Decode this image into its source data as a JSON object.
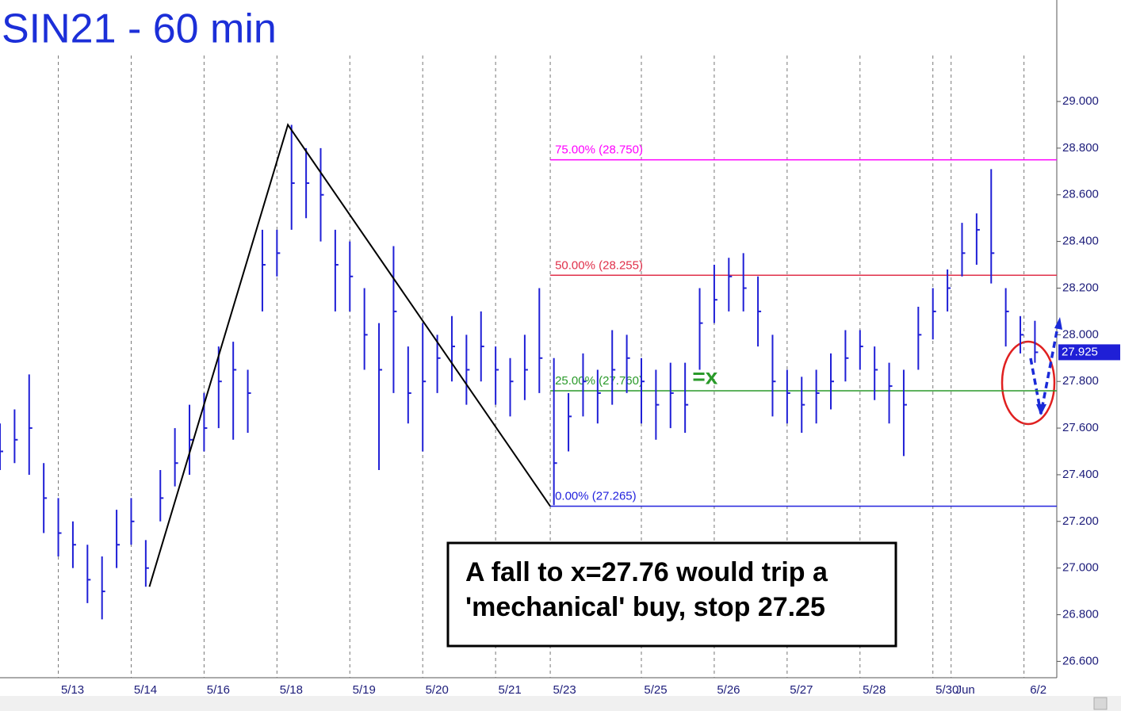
{
  "chart_data": {
    "type": "ohlc",
    "title": "SIN21 - 60 min",
    "x": [
      0,
      4,
      8,
      12,
      16,
      20,
      24,
      28,
      32,
      36,
      40,
      44,
      48,
      52,
      56,
      60,
      64,
      68,
      72,
      76,
      80,
      84,
      88,
      92,
      96,
      100,
      104,
      108,
      112,
      116,
      120,
      124,
      128,
      132,
      136,
      140,
      144,
      148,
      152,
      156,
      160,
      164,
      168,
      172,
      176,
      180,
      184,
      188,
      192,
      196,
      200,
      204,
      208,
      212,
      216,
      220,
      224,
      228,
      232,
      236,
      240,
      244,
      248,
      252,
      256,
      260,
      264,
      268,
      272,
      276,
      280,
      284
    ],
    "series": [
      {
        "color": "#1f1fd6",
        "high": [
          27.62,
          27.68,
          27.83,
          27.45,
          27.3,
          27.2,
          27.1,
          27.05,
          27.25,
          27.3,
          27.12,
          27.42,
          27.6,
          27.7,
          27.75,
          27.95,
          27.97,
          27.85,
          28.45,
          28.45,
          28.9,
          28.8,
          28.8,
          28.45,
          28.4,
          28.2,
          28.05,
          28.38,
          27.95,
          28.05,
          28.0,
          28.08,
          28.0,
          28.1,
          27.95,
          27.9,
          28.0,
          28.2,
          27.9,
          27.75,
          27.92,
          27.85,
          28.02,
          28.0,
          27.9,
          27.85,
          27.88,
          27.88,
          28.2,
          28.3,
          28.33,
          28.35,
          28.25,
          28.0,
          27.85,
          27.82,
          27.85,
          27.92,
          28.02,
          28.02,
          27.95,
          27.88,
          27.85,
          28.12,
          28.2,
          28.28,
          28.48,
          28.52,
          28.71,
          28.2,
          28.08,
          28.06
        ],
        "low": [
          27.42,
          27.45,
          27.4,
          27.15,
          27.05,
          27.0,
          26.85,
          26.78,
          27.0,
          27.1,
          26.92,
          27.2,
          27.35,
          27.4,
          27.5,
          27.6,
          27.55,
          27.58,
          28.1,
          28.25,
          28.45,
          28.5,
          28.4,
          28.1,
          28.1,
          27.85,
          27.42,
          27.75,
          27.62,
          27.5,
          27.75,
          27.8,
          27.7,
          27.8,
          27.7,
          27.65,
          27.72,
          27.75,
          27.27,
          27.5,
          27.65,
          27.62,
          27.7,
          27.75,
          27.62,
          27.55,
          27.6,
          27.58,
          27.85,
          28.05,
          28.1,
          28.1,
          27.95,
          27.65,
          27.62,
          27.58,
          27.62,
          27.68,
          27.8,
          27.85,
          27.72,
          27.62,
          27.48,
          27.85,
          27.98,
          28.1,
          28.25,
          28.3,
          28.22,
          27.95,
          27.92,
          27.88
        ],
        "close": [
          27.5,
          27.55,
          27.6,
          27.3,
          27.15,
          27.1,
          26.95,
          26.9,
          27.1,
          27.2,
          27.0,
          27.3,
          27.45,
          27.55,
          27.6,
          27.8,
          27.85,
          27.75,
          28.3,
          28.35,
          28.65,
          28.65,
          28.6,
          28.3,
          28.25,
          28.0,
          27.85,
          28.1,
          27.75,
          27.8,
          27.9,
          27.95,
          27.85,
          27.95,
          27.85,
          27.8,
          27.85,
          27.9,
          27.45,
          27.65,
          27.8,
          27.75,
          27.85,
          27.9,
          27.8,
          27.7,
          27.75,
          27.7,
          28.05,
          28.15,
          28.25,
          28.2,
          28.1,
          27.8,
          27.75,
          27.7,
          27.75,
          27.8,
          27.9,
          27.95,
          27.85,
          27.78,
          27.7,
          28.0,
          28.1,
          28.2,
          28.35,
          28.45,
          28.35,
          28.1,
          28.0,
          27.925
        ]
      }
    ],
    "last_price": 27.925,
    "xlim": [
      0,
      290
    ],
    "xticks": [
      {
        "value": 16,
        "label": "5/13"
      },
      {
        "value": 36,
        "label": "5/14"
      },
      {
        "value": 56,
        "label": "5/16"
      },
      {
        "value": 76,
        "label": "5/18"
      },
      {
        "value": 96,
        "label": "5/19"
      },
      {
        "value": 116,
        "label": "5/20"
      },
      {
        "value": 136,
        "label": "5/21"
      },
      {
        "value": 151,
        "label": "5/23"
      },
      {
        "value": 176,
        "label": "5/25"
      },
      {
        "value": 196,
        "label": "5/26"
      },
      {
        "value": 216,
        "label": "5/27"
      },
      {
        "value": 236,
        "label": "5/28"
      },
      {
        "value": 256,
        "label": "5/30"
      },
      {
        "value": 261,
        "label": "Jun"
      },
      {
        "value": 281,
        "label": "6/2"
      }
    ],
    "ylim": [
      26.53,
      29.435
    ],
    "yticks": [
      {
        "value": 26.6,
        "label": "26.600"
      },
      {
        "value": 26.8,
        "label": "26.800"
      },
      {
        "value": 27.0,
        "label": "27.000"
      },
      {
        "value": 27.2,
        "label": "27.200"
      },
      {
        "value": 27.4,
        "label": "27.400"
      },
      {
        "value": 27.6,
        "label": "27.600"
      },
      {
        "value": 27.8,
        "label": "27.800"
      },
      {
        "value": 28.0,
        "label": "28.000"
      },
      {
        "value": 28.2,
        "label": "28.200"
      },
      {
        "value": 28.4,
        "label": "28.400"
      },
      {
        "value": 28.6,
        "label": "28.600"
      },
      {
        "value": 28.8,
        "label": "28.800"
      },
      {
        "value": 29.0,
        "label": "29.000"
      }
    ],
    "trendline": {
      "x": [
        41,
        79,
        151
      ],
      "y": [
        26.92,
        28.9,
        27.265
      ],
      "color": "#000000"
    },
    "levels": [
      {
        "label": "75.00% (28.750)",
        "value": 28.75,
        "color": "#ff00ff"
      },
      {
        "label": "50.00% (28.255)",
        "value": 28.255,
        "color": "#e0304a"
      },
      {
        "label": "25.00% (27.760)",
        "value": 27.76,
        "color": "#2a9a2a"
      },
      {
        "label": "0.00% (27.265)",
        "value": 27.265,
        "color": "#2222dd"
      }
    ],
    "levels_start": 151,
    "marker": {
      "label": "=x",
      "x": 190,
      "value": 27.76,
      "color": "#2a9a2a"
    },
    "annotation": [
      "A fall to x=27.76 would trip a",
      "'mechanical' buy, stop 27.25"
    ]
  }
}
